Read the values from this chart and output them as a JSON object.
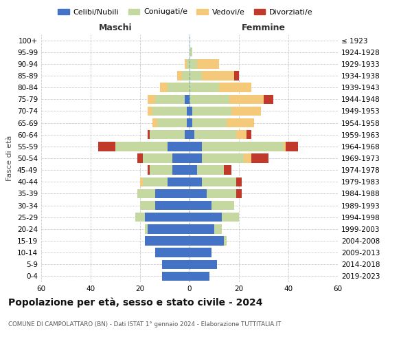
{
  "age_groups": [
    "0-4",
    "5-9",
    "10-14",
    "15-19",
    "20-24",
    "25-29",
    "30-34",
    "35-39",
    "40-44",
    "45-49",
    "50-54",
    "55-59",
    "60-64",
    "65-69",
    "70-74",
    "75-79",
    "80-84",
    "85-89",
    "90-94",
    "95-99",
    "100+"
  ],
  "birth_years": [
    "2019-2023",
    "2014-2018",
    "2009-2013",
    "2004-2008",
    "1999-2003",
    "1994-1998",
    "1989-1993",
    "1984-1988",
    "1979-1983",
    "1974-1978",
    "1969-1973",
    "1964-1968",
    "1959-1963",
    "1954-1958",
    "1949-1953",
    "1944-1948",
    "1939-1943",
    "1934-1938",
    "1929-1933",
    "1924-1928",
    "≤ 1923"
  ],
  "male": {
    "celibe": [
      11,
      11,
      14,
      18,
      17,
      18,
      14,
      14,
      9,
      7,
      7,
      9,
      2,
      1,
      1,
      2,
      0,
      0,
      0,
      0,
      0
    ],
    "coniugato": [
      0,
      0,
      0,
      0,
      1,
      4,
      6,
      7,
      10,
      9,
      12,
      21,
      14,
      12,
      14,
      12,
      9,
      3,
      1,
      0,
      0
    ],
    "vedovo": [
      0,
      0,
      0,
      0,
      0,
      0,
      0,
      0,
      1,
      0,
      0,
      0,
      0,
      2,
      2,
      3,
      3,
      2,
      1,
      0,
      0
    ],
    "divorziato": [
      0,
      0,
      0,
      0,
      0,
      0,
      0,
      0,
      0,
      1,
      2,
      7,
      1,
      0,
      0,
      0,
      0,
      0,
      0,
      0,
      0
    ]
  },
  "female": {
    "nubile": [
      8,
      11,
      9,
      14,
      10,
      13,
      9,
      7,
      5,
      3,
      5,
      5,
      2,
      1,
      1,
      0,
      0,
      0,
      0,
      0,
      0
    ],
    "coniugata": [
      0,
      0,
      0,
      1,
      3,
      7,
      9,
      12,
      14,
      11,
      17,
      33,
      17,
      14,
      16,
      16,
      12,
      5,
      3,
      1,
      0
    ],
    "vedova": [
      0,
      0,
      0,
      0,
      0,
      0,
      0,
      0,
      0,
      0,
      3,
      1,
      4,
      11,
      12,
      14,
      13,
      13,
      9,
      0,
      0
    ],
    "divorziata": [
      0,
      0,
      0,
      0,
      0,
      0,
      0,
      2,
      2,
      3,
      7,
      5,
      2,
      0,
      0,
      4,
      0,
      2,
      0,
      0,
      0
    ]
  },
  "colors": {
    "celibe": "#4472c4",
    "coniugato": "#c5d8a0",
    "vedovo": "#f5c97a",
    "divorziato": "#c0392b"
  },
  "title": "Popolazione per età, sesso e stato civile - 2024",
  "subtitle": "COMUNE DI CAMPOLATTARO (BN) - Dati ISTAT 1° gennaio 2024 - Elaborazione TUTTITALIA.IT",
  "xlabel_left": "Maschi",
  "xlabel_right": "Femmine",
  "ylabel_left": "Fasce di età",
  "xlim": 60,
  "legend_labels": [
    "Celibi/Nubili",
    "Coniugati/e",
    "Vedovi/e",
    "Divorziati/e"
  ]
}
